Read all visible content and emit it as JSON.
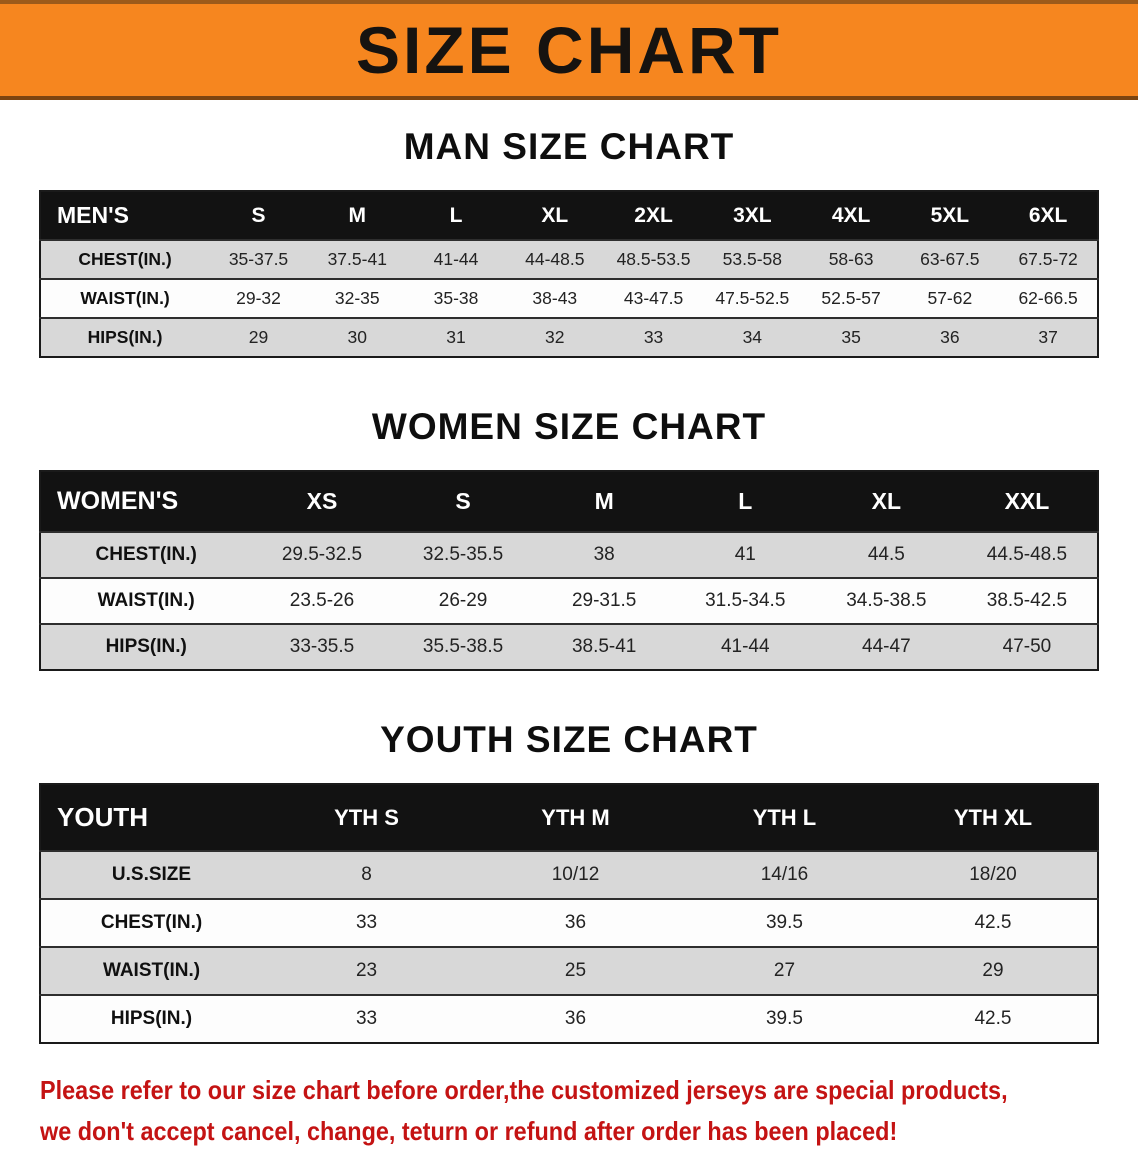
{
  "banner": {
    "title": "SIZE CHART",
    "bg_color": "#f6861f",
    "text_color": "#161310"
  },
  "sections": [
    {
      "heading": "MAN SIZE CHART",
      "table": {
        "header": [
          "MEN'S",
          "S",
          "M",
          "L",
          "XL",
          "2XL",
          "3XL",
          "4XL",
          "5XL",
          "6XL"
        ],
        "rows": [
          [
            "CHEST(IN.)",
            "35-37.5",
            "37.5-41",
            "41-44",
            "44-48.5",
            "48.5-53.5",
            "53.5-58",
            "58-63",
            "63-67.5",
            "67.5-72"
          ],
          [
            "WAIST(IN.)",
            "29-32",
            "32-35",
            "35-38",
            "38-43",
            "43-47.5",
            "47.5-52.5",
            "52.5-57",
            "57-62",
            "62-66.5"
          ],
          [
            "HIPS(IN.)",
            "29",
            "30",
            "31",
            "32",
            "33",
            "34",
            "35",
            "36",
            "37"
          ]
        ]
      }
    },
    {
      "heading": "WOMEN SIZE CHART",
      "table": {
        "header": [
          "WOMEN'S",
          "XS",
          "S",
          "M",
          "L",
          "XL",
          "XXL"
        ],
        "rows": [
          [
            "CHEST(IN.)",
            "29.5-32.5",
            "32.5-35.5",
            "38",
            "41",
            "44.5",
            "44.5-48.5"
          ],
          [
            "WAIST(IN.)",
            "23.5-26",
            "26-29",
            "29-31.5",
            "31.5-34.5",
            "34.5-38.5",
            "38.5-42.5"
          ],
          [
            "HIPS(IN.)",
            "33-35.5",
            "35.5-38.5",
            "38.5-41",
            "41-44",
            "44-47",
            "47-50"
          ]
        ]
      }
    },
    {
      "heading": "YOUTH SIZE CHART",
      "table": {
        "header": [
          "YOUTH",
          "YTH S",
          "YTH M",
          "YTH L",
          "YTH XL"
        ],
        "rows": [
          [
            "U.S.SIZE",
            "8",
            "10/12",
            "14/16",
            "18/20"
          ],
          [
            "CHEST(IN.)",
            "33",
            "36",
            "39.5",
            "42.5"
          ],
          [
            "WAIST(IN.)",
            "23",
            "25",
            "27",
            "29"
          ],
          [
            "HIPS(IN.)",
            "33",
            "36",
            "39.5",
            "42.5"
          ]
        ]
      }
    }
  ],
  "footer": {
    "line1": "Please refer to our size chart before order,the customized jerseys are special products,",
    "line2": "we don't accept cancel, change, teturn or refund after order has been placed!",
    "text_color": "#c41313"
  }
}
